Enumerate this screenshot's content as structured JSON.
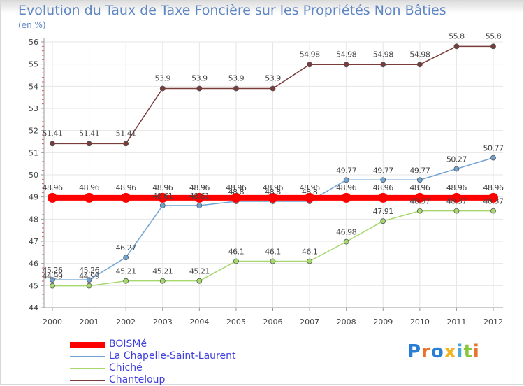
{
  "title": "Evolution du Taux de Taxe Foncière sur les Propriétés Non Bâties",
  "unit": "(en %)",
  "logo": {
    "letters": [
      "P",
      "r",
      "o",
      "x",
      "i",
      "t",
      "i"
    ],
    "colors": [
      "#2a7fd4",
      "#e8732b",
      "#2a7fd4",
      "#f2b320",
      "#4aa8d8",
      "#8cc63f",
      "#e8732b"
    ]
  },
  "chart_data": {
    "type": "line",
    "title": "Evolution du Taux de Taxe Foncière sur les Propriétés Non Bâties",
    "ylabel": "(en %)",
    "xlabel": "",
    "x": [
      "2000",
      "2001",
      "2002",
      "2003",
      "2004",
      "2005",
      "2006",
      "2007",
      "2008",
      "2009",
      "2010",
      "2011",
      "2012"
    ],
    "ylim": [
      44,
      56
    ],
    "yticks": [
      "44",
      "45",
      "46",
      "47",
      "48",
      "49",
      "50",
      "51",
      "52",
      "53",
      "54",
      "55",
      "56"
    ],
    "series": [
      {
        "name": "BOISMé",
        "color": "#ff0000",
        "style": "thick",
        "values": [
          48.96,
          48.96,
          48.96,
          48.96,
          48.96,
          48.96,
          48.96,
          48.96,
          48.96,
          48.96,
          48.96,
          48.96,
          48.96
        ],
        "labels": [
          "48.96",
          "48.96",
          "48.96",
          "48.96",
          "48.96",
          "48.96",
          "48.96",
          "48.96",
          "48.96",
          "48.96",
          "48.96",
          "48.96",
          "48.96"
        ]
      },
      {
        "name": "La Chapelle-Saint-Laurent",
        "color": "#6fa3d4",
        "style": "thin",
        "values": [
          45.26,
          45.26,
          46.27,
          48.61,
          48.61,
          48.8,
          48.8,
          48.8,
          49.77,
          49.77,
          49.77,
          50.27,
          50.77
        ],
        "labels": [
          "45.26",
          "45.26",
          "46.27",
          "48.61",
          "48.61",
          "48.8",
          "48.8",
          "48.8",
          "49.77",
          "49.77",
          "49.77",
          "50.27",
          "50.77"
        ]
      },
      {
        "name": "Chiché",
        "color": "#a6d86e",
        "style": "thin",
        "values": [
          44.99,
          44.99,
          45.21,
          45.21,
          45.21,
          46.1,
          46.1,
          46.1,
          46.98,
          47.91,
          48.37,
          48.37,
          48.37
        ],
        "labels": [
          "44.99",
          "44.99",
          "45.21",
          "45.21",
          "45.21",
          "46.1",
          "46.1",
          "46.1",
          "46.98",
          "47.91",
          "48.37",
          "48.37",
          "48.37"
        ]
      },
      {
        "name": "Chanteloup",
        "color": "#7a3b3b",
        "style": "thin",
        "values": [
          51.41,
          51.41,
          51.41,
          53.9,
          53.9,
          53.9,
          53.9,
          54.98,
          54.98,
          54.98,
          54.98,
          55.8,
          55.8
        ],
        "labels": [
          "51.41",
          "51.41",
          "51.41",
          "53.9",
          "53.9",
          "53.9",
          "53.9",
          "54.98",
          "54.98",
          "54.98",
          "54.98",
          "55.8",
          "55.8"
        ]
      }
    ]
  }
}
